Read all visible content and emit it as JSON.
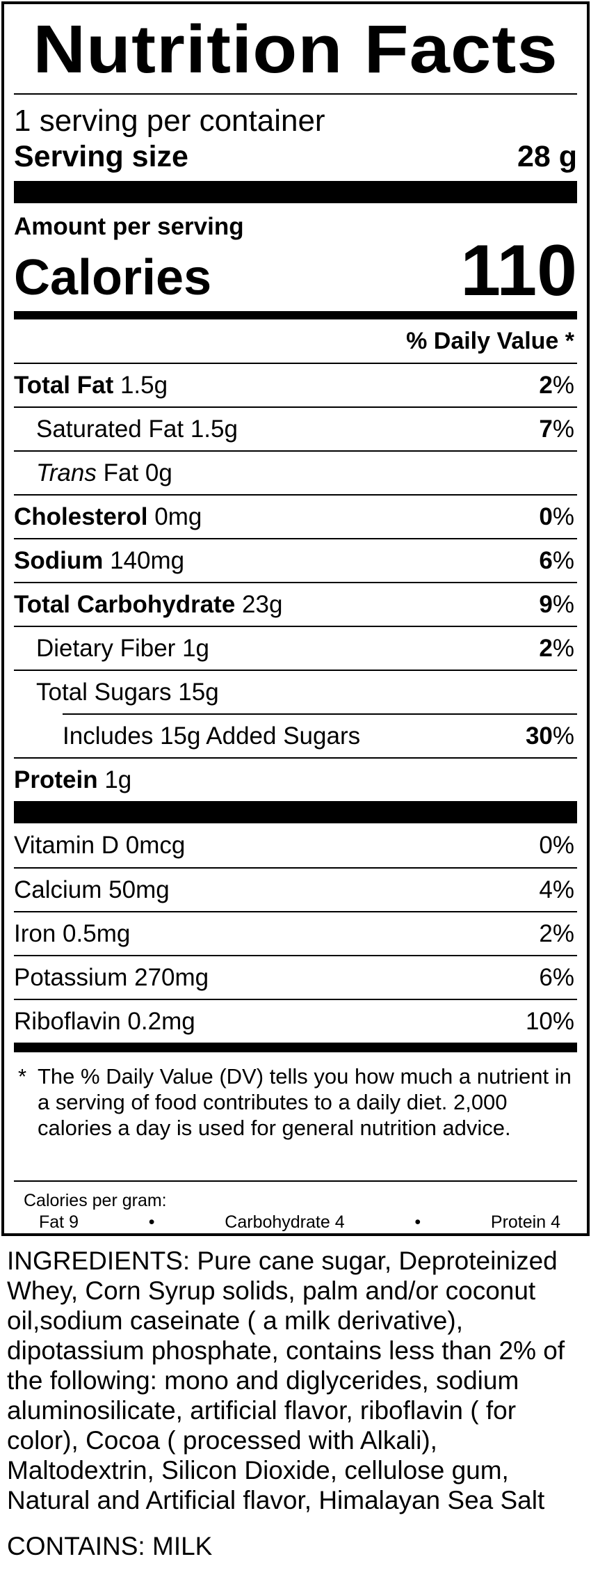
{
  "title": "Nutrition Facts",
  "servings_per_container": "1 serving per container",
  "serving_size": {
    "label": "Serving size",
    "value": "28 g"
  },
  "amount_per_serving": "Amount per serving",
  "calories": {
    "label": "Calories",
    "value": "110"
  },
  "daily_value_header": "% Daily Value *",
  "nutrients": [
    {
      "name": "Total Fat",
      "amount": "1.5g",
      "pct_num": "2",
      "pct_sign": "%"
    },
    {
      "name": "Saturated Fat",
      "amount": "1.5g",
      "pct_num": "7",
      "pct_sign": "%"
    },
    {
      "name": "Trans",
      "name_rest": " Fat",
      "amount": "0g"
    },
    {
      "name": "Cholesterol",
      "amount": "0mg",
      "pct_num": "0",
      "pct_sign": "%"
    },
    {
      "name": "Sodium",
      "amount": "140mg",
      "pct_num": "6",
      "pct_sign": "%"
    },
    {
      "name": "Total Carbohydrate",
      "amount": "23g",
      "pct_num": "9",
      "pct_sign": "%"
    },
    {
      "name": "Dietary Fiber",
      "amount": "1g",
      "pct_num": "2",
      "pct_sign": "%"
    },
    {
      "name": "Total Sugars",
      "amount": "15g"
    },
    {
      "name": "Includes 15g Added Sugars",
      "pct_num": "30",
      "pct_sign": "%"
    },
    {
      "name": "Protein",
      "amount": "1g"
    }
  ],
  "vitamins": [
    {
      "label": "Vitamin D 0mcg",
      "pct": "0%"
    },
    {
      "label": "Calcium 50mg",
      "pct": "4%"
    },
    {
      "label": "Iron 0.5mg",
      "pct": "2%"
    },
    {
      "label": "Potassium 270mg",
      "pct": "6%"
    },
    {
      "label": "Riboflavin 0.2mg",
      "pct": "10%"
    }
  ],
  "footnote": {
    "star": "*",
    "text": "The % Daily Value (DV) tells you how much a nutrient in a serving of food contributes to a daily diet. 2,000 calories a day is used for general nutrition advice."
  },
  "calories_per_gram": {
    "label": "Calories per gram:",
    "fat": "Fat 9",
    "bullet": "•",
    "carb": "Carbohydrate 4",
    "protein": "Protein 4"
  },
  "ingredients": "INGREDIENTS: Pure cane sugar, Deproteinized Whey, Corn Syrup solids, palm and/or coconut oil,sodium caseinate ( a milk derivative), dipotassium phosphate, contains less than 2% of the following: mono and diglycerides, sodium aluminosilicate, artificial flavor, riboflavin ( for color), Cocoa ( processed with Alkali), Maltodextrin, Silicon Dioxide, cellulose gum, Natural and Artificial flavor, Himalayan Sea Salt",
  "contains": "CONTAINS: MILK"
}
